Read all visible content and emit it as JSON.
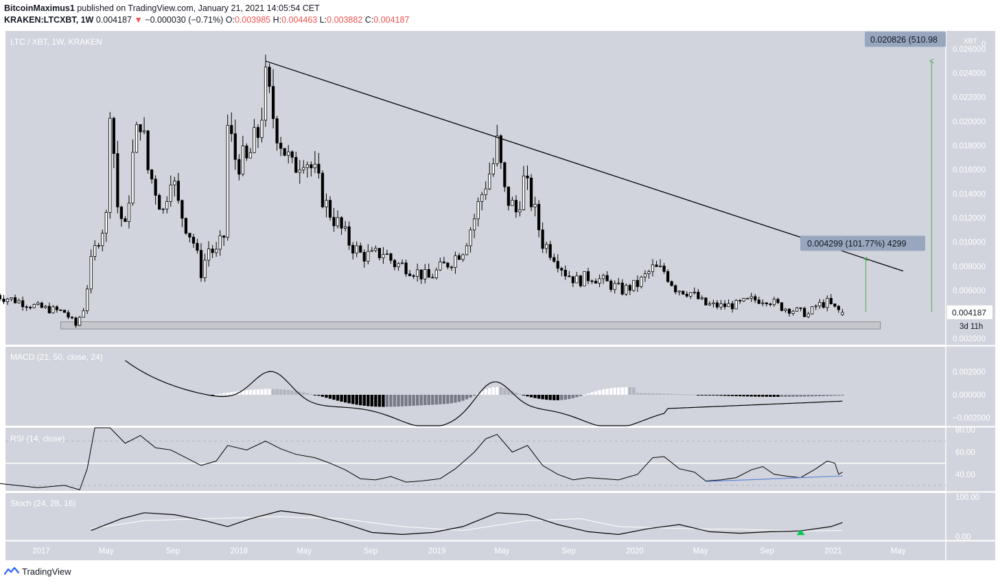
{
  "header": {
    "author": "BitcoinMaximus1",
    "published_text": "published on TradingView.com, January 21, 2021 14:05:54 CET",
    "symbol": "KRAKEN:LTCXBT, 1W",
    "last": "0.004187",
    "change_arrow": "▼",
    "change": "−0.000030 (−0.71%)",
    "o_label": "O:",
    "o_value": "0.003985",
    "h_label": "H:",
    "h_value": "0.004463",
    "l_label": "L:",
    "l_value": "0.003882",
    "c_label": "C:",
    "c_value": "0.004187"
  },
  "brand": {
    "name": "TradingView",
    "icon": "tradingview-logo-icon"
  },
  "colors": {
    "plot_bg": "#d1d4dc",
    "up_candle": "#ffffff",
    "down_candle": "#000000",
    "trendline": "#000000",
    "target_arrow": "#4caf50",
    "label_bg": "#98a6be",
    "support_zone": "#c4c6cc",
    "rsi_trend": "#5b87d6",
    "stoch_k": "#000000",
    "stoch_d": "#ffffff",
    "signal_triangle": "#00c853"
  },
  "chart_data": [
    {
      "type": "candlestick",
      "title": "LTC / XBT, 1W, KRAKEN",
      "unit_label": "XBT",
      "y_ticks": [
        "0.026000",
        "0.024000",
        "0.022000",
        "0.020000",
        "0.018000",
        "0.016000",
        "0.014000",
        "0.012000",
        "0.010000",
        "0.008000",
        "0.006000",
        "0.002000"
      ],
      "top_tick": "0",
      "ylim": [
        0.0015,
        0.0275
      ],
      "x_ticks": [
        "2017",
        "May",
        "Sep",
        "2018",
        "May",
        "Sep",
        "2019",
        "May",
        "Sep",
        "2020",
        "May",
        "Sep",
        "2021",
        "May"
      ],
      "x_tick_dates": [
        "2017-01-01",
        "2017-05-01",
        "2017-09-01",
        "2018-01-01",
        "2018-05-01",
        "2018-09-01",
        "2019-01-01",
        "2019-05-01",
        "2019-09-01",
        "2020-01-01",
        "2020-05-01",
        "2020-09-01",
        "2021-01-01",
        "2021-05-01"
      ],
      "close_path": [
        [
          "2016-10-10",
          0.0056
        ],
        [
          "2016-11-21",
          0.0051
        ],
        [
          "2016-12-26",
          0.0046
        ],
        [
          "2017-02-13",
          0.0042
        ],
        [
          "2017-03-06",
          0.0031
        ],
        [
          "2017-03-20",
          0.0045
        ],
        [
          "2017-04-03",
          0.0082
        ],
        [
          "2017-04-17",
          0.0105
        ],
        [
          "2017-05-01",
          0.012
        ],
        [
          "2017-05-08",
          0.022
        ],
        [
          "2017-05-22",
          0.013
        ],
        [
          "2017-06-05",
          0.011
        ],
        [
          "2017-06-19",
          0.017
        ],
        [
          "2017-07-03",
          0.0205
        ],
        [
          "2017-07-17",
          0.016
        ],
        [
          "2017-07-31",
          0.0145
        ],
        [
          "2017-08-14",
          0.0125
        ],
        [
          "2017-08-28",
          0.016
        ],
        [
          "2017-09-11",
          0.013
        ],
        [
          "2017-09-25",
          0.0115
        ],
        [
          "2017-10-09",
          0.01
        ],
        [
          "2017-10-23",
          0.0075
        ],
        [
          "2017-11-06",
          0.0095
        ],
        [
          "2017-11-20",
          0.009
        ],
        [
          "2017-12-04",
          0.0105
        ],
        [
          "2017-12-11",
          0.0195
        ],
        [
          "2017-12-25",
          0.017
        ],
        [
          "2018-01-15",
          0.0165
        ],
        [
          "2018-02-05",
          0.019
        ],
        [
          "2018-02-19",
          0.023
        ],
        [
          "2018-03-05",
          0.0205
        ],
        [
          "2018-03-19",
          0.0185
        ],
        [
          "2018-04-09",
          0.016
        ],
        [
          "2018-04-30",
          0.0175
        ],
        [
          "2018-05-21",
          0.0155
        ],
        [
          "2018-06-11",
          0.013
        ],
        [
          "2018-07-02",
          0.0115
        ],
        [
          "2018-07-23",
          0.01
        ],
        [
          "2018-08-13",
          0.009
        ],
        [
          "2018-09-03",
          0.0088
        ],
        [
          "2018-09-24",
          0.0092
        ],
        [
          "2018-10-15",
          0.0082
        ],
        [
          "2018-11-05",
          0.008
        ],
        [
          "2018-11-26",
          0.0075
        ],
        [
          "2018-12-17",
          0.007
        ],
        [
          "2019-01-07",
          0.0078
        ],
        [
          "2019-01-28",
          0.0085
        ],
        [
          "2019-02-18",
          0.0095
        ],
        [
          "2019-03-11",
          0.012
        ],
        [
          "2019-04-01",
          0.015
        ],
        [
          "2019-04-15",
          0.0165
        ],
        [
          "2019-04-22",
          0.018
        ],
        [
          "2019-05-06",
          0.014
        ],
        [
          "2019-05-27",
          0.0125
        ],
        [
          "2019-06-10",
          0.015
        ],
        [
          "2019-06-24",
          0.0135
        ],
        [
          "2019-07-15",
          0.01
        ],
        [
          "2019-08-05",
          0.009
        ],
        [
          "2019-08-26",
          0.0075
        ],
        [
          "2019-09-16",
          0.0068
        ],
        [
          "2019-10-14",
          0.0072
        ],
        [
          "2019-11-11",
          0.0066
        ],
        [
          "2019-12-09",
          0.006
        ],
        [
          "2020-01-06",
          0.0065
        ],
        [
          "2020-02-03",
          0.0078
        ],
        [
          "2020-02-24",
          0.0076
        ],
        [
          "2020-03-16",
          0.0062
        ],
        [
          "2020-04-13",
          0.0058
        ],
        [
          "2020-05-11",
          0.0048
        ],
        [
          "2020-06-08",
          0.0047
        ],
        [
          "2020-07-06",
          0.0048
        ],
        [
          "2020-08-03",
          0.0052
        ],
        [
          "2020-08-31",
          0.0053
        ],
        [
          "2020-09-28",
          0.0046
        ],
        [
          "2020-10-26",
          0.0043
        ],
        [
          "2020-11-16",
          0.004
        ],
        [
          "2020-11-30",
          0.0047
        ],
        [
          "2020-12-21",
          0.005
        ],
        [
          "2021-01-04",
          0.0045
        ],
        [
          "2021-01-18",
          0.004187
        ]
      ],
      "trendline": {
        "from": [
          "2018-02-19",
          0.025
        ],
        "to": [
          "2021-05-10",
          0.0076
        ]
      },
      "support_zone": {
        "from": "2017-02-06",
        "to": "2021-03-29",
        "low": 0.0028,
        "high": 0.0034
      },
      "annotations": [
        {
          "text": "0.004299 (101.77%) 4299",
          "value": 0.004299,
          "pct": "101.77%"
        },
        {
          "text": "0.020826 (510.98",
          "value": 0.020826
        }
      ],
      "last_price_label": "0.004187",
      "countdown_label": "3d 11h"
    },
    {
      "type": "line",
      "title": "MACD (21, 50, close, 24)",
      "y_ticks": [
        "0.002000",
        "0.000000",
        "−0.002000"
      ],
      "ylim": [
        -0.0027,
        0.0042
      ]
    },
    {
      "type": "line",
      "title": "RSI (14, close)",
      "y_ticks": [
        "80.00",
        "60.00",
        "40.00"
      ],
      "ylim": [
        25,
        82
      ],
      "bands": [
        70,
        50,
        30
      ],
      "values": [
        [
          "2016-10-10",
          32
        ],
        [
          "2016-12-26",
          28
        ],
        [
          "2017-02-13",
          30
        ],
        [
          "2017-03-13",
          26
        ],
        [
          "2017-03-27",
          45
        ],
        [
          "2017-04-10",
          82
        ],
        [
          "2017-05-08",
          85
        ],
        [
          "2017-06-05",
          68
        ],
        [
          "2017-07-03",
          75
        ],
        [
          "2017-07-31",
          64
        ],
        [
          "2017-08-28",
          62
        ],
        [
          "2017-09-25",
          55
        ],
        [
          "2017-10-23",
          48
        ],
        [
          "2017-11-20",
          52
        ],
        [
          "2017-12-11",
          66
        ],
        [
          "2018-01-15",
          62
        ],
        [
          "2018-02-19",
          70
        ],
        [
          "2018-03-19",
          63
        ],
        [
          "2018-04-16",
          58
        ],
        [
          "2018-05-21",
          55
        ],
        [
          "2018-06-18",
          50
        ],
        [
          "2018-07-16",
          44
        ],
        [
          "2018-08-13",
          36
        ],
        [
          "2018-09-10",
          35
        ],
        [
          "2018-10-08",
          38
        ],
        [
          "2018-11-05",
          33
        ],
        [
          "2018-12-03",
          34
        ],
        [
          "2019-01-07",
          36
        ],
        [
          "2019-02-04",
          45
        ],
        [
          "2019-03-11",
          60
        ],
        [
          "2019-04-01",
          72
        ],
        [
          "2019-04-22",
          76
        ],
        [
          "2019-05-20",
          60
        ],
        [
          "2019-06-17",
          66
        ],
        [
          "2019-07-15",
          48
        ],
        [
          "2019-08-12",
          40
        ],
        [
          "2019-09-09",
          35
        ],
        [
          "2019-10-07",
          37
        ],
        [
          "2019-11-04",
          36
        ],
        [
          "2019-12-02",
          35
        ],
        [
          "2020-01-06",
          40
        ],
        [
          "2020-02-03",
          55
        ],
        [
          "2020-02-24",
          56
        ],
        [
          "2020-03-23",
          45
        ],
        [
          "2020-04-20",
          42
        ],
        [
          "2020-05-11",
          34
        ],
        [
          "2020-06-08",
          35
        ],
        [
          "2020-07-06",
          37
        ],
        [
          "2020-08-03",
          44
        ],
        [
          "2020-08-24",
          47
        ],
        [
          "2020-09-14",
          40
        ],
        [
          "2020-10-12",
          38
        ],
        [
          "2020-11-02",
          37
        ],
        [
          "2020-11-30",
          45
        ],
        [
          "2020-12-21",
          52
        ],
        [
          "2021-01-04",
          50
        ],
        [
          "2021-01-11",
          40
        ],
        [
          "2021-01-18",
          42
        ]
      ],
      "trendline": {
        "from": [
          "2020-05-11",
          33.5
        ],
        "to": [
          "2021-01-18",
          38.5
        ]
      }
    },
    {
      "type": "line",
      "title": "Stoch (24, 28, 16)",
      "y_ticks": [
        "100.00",
        "0.00"
      ],
      "ylim": [
        -10,
        110
      ],
      "series": [
        {
          "values": [
            [
              "2017-04-03",
              15
            ],
            [
              "2017-05-29",
              45
            ],
            [
              "2017-07-10",
              60
            ],
            [
              "2017-09-04",
              55
            ],
            [
              "2017-10-30",
              40
            ],
            [
              "2017-12-11",
              25
            ],
            [
              "2018-01-22",
              45
            ],
            [
              "2018-03-19",
              65
            ],
            [
              "2018-05-14",
              55
            ],
            [
              "2018-07-09",
              35
            ],
            [
              "2018-09-03",
              10
            ],
            [
              "2018-10-29",
              5
            ],
            [
              "2018-12-24",
              10
            ],
            [
              "2019-02-18",
              25
            ],
            [
              "2019-04-22",
              60
            ],
            [
              "2019-06-17",
              55
            ],
            [
              "2019-08-12",
              30
            ],
            [
              "2019-10-07",
              12
            ],
            [
              "2019-12-02",
              5
            ],
            [
              "2020-01-27",
              20
            ],
            [
              "2020-03-23",
              30
            ],
            [
              "2020-05-18",
              12
            ],
            [
              "2020-07-13",
              8
            ],
            [
              "2020-09-07",
              12
            ],
            [
              "2020-11-02",
              14
            ],
            [
              "2020-12-28",
              25
            ],
            [
              "2021-01-18",
              35
            ]
          ]
        },
        {
          "values": [
            [
              "2017-04-03",
              20
            ],
            [
              "2017-07-10",
              40
            ],
            [
              "2017-10-30",
              45
            ],
            [
              "2018-03-19",
              50
            ],
            [
              "2018-07-09",
              45
            ],
            [
              "2018-10-29",
              25
            ],
            [
              "2019-02-18",
              15
            ],
            [
              "2019-06-17",
              40
            ],
            [
              "2019-09-23",
              45
            ],
            [
              "2019-12-02",
              25
            ],
            [
              "2020-03-23",
              20
            ],
            [
              "2020-07-13",
              18
            ],
            [
              "2020-11-02",
              14
            ],
            [
              "2021-01-18",
              15
            ]
          ]
        }
      ],
      "signal_marker_date": "2020-11-02"
    }
  ]
}
